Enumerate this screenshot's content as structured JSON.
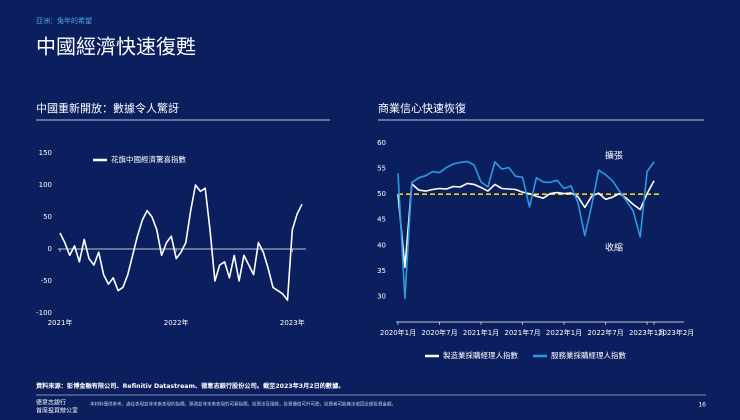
{
  "header": {
    "section": "亞洲：兔年的希望",
    "title": "中國經濟快速復甦"
  },
  "chart_data": [
    {
      "type": "line",
      "title": "中國重新開放：數據令人驚訝",
      "categories": [
        "2021年",
        null,
        null,
        null,
        null,
        null,
        null,
        null,
        null,
        null,
        null,
        null,
        null,
        null,
        null,
        null,
        null,
        null,
        null,
        null,
        null,
        null,
        null,
        null,
        "2022年",
        null,
        null,
        null,
        null,
        null,
        null,
        null,
        null,
        null,
        null,
        null,
        null,
        null,
        null,
        null,
        null,
        null,
        null,
        null,
        null,
        null,
        null,
        null,
        "2023年",
        null,
        null
      ],
      "series": [
        {
          "name": "花旗中國經濟驚喜指數",
          "color": "#ffffff",
          "values": [
            25,
            10,
            -10,
            5,
            -20,
            15,
            -15,
            -25,
            -5,
            -40,
            -55,
            -45,
            -65,
            -60,
            -40,
            -10,
            20,
            45,
            60,
            50,
            30,
            -10,
            10,
            20,
            -15,
            -5,
            10,
            60,
            100,
            90,
            95,
            30,
            -50,
            -25,
            -20,
            -45,
            -10,
            -50,
            -10,
            -25,
            -40,
            10,
            -5,
            -30,
            -60,
            -65,
            -70,
            -80,
            30,
            55,
            70
          ]
        }
      ],
      "ylim": [
        -100,
        150
      ],
      "yticks": [
        -100,
        -50,
        0,
        50,
        100,
        150
      ],
      "legend": "upper-left"
    },
    {
      "type": "line",
      "title": "商業信心快速恢復",
      "categories": [
        "2020年1月",
        null,
        null,
        null,
        null,
        null,
        "2020年7月",
        null,
        null,
        null,
        null,
        null,
        "2021年1月",
        null,
        null,
        null,
        null,
        null,
        "2021年7月",
        null,
        null,
        null,
        null,
        null,
        "2022年1月",
        null,
        null,
        null,
        null,
        null,
        "2022年7月",
        null,
        null,
        null,
        null,
        null,
        "2023年1月",
        "2023年2月"
      ],
      "series": [
        {
          "name": "製造業採購經理人指數",
          "color": "#ffffff",
          "values": [
            50.0,
            35.7,
            52.0,
            50.8,
            50.6,
            50.9,
            51.1,
            51.0,
            51.5,
            51.4,
            52.1,
            51.9,
            51.3,
            50.6,
            51.9,
            51.1,
            51.0,
            50.9,
            50.4,
            50.1,
            49.6,
            49.2,
            50.1,
            50.3,
            50.1,
            50.2,
            49.5,
            47.4,
            49.6,
            50.2,
            49.0,
            49.4,
            50.1,
            49.2,
            48.0,
            47.0,
            50.1,
            52.6
          ]
        },
        {
          "name": "服務業採購經理人指數",
          "color": "#2b9be0",
          "values": [
            54.1,
            29.6,
            52.3,
            53.2,
            53.6,
            54.4,
            54.2,
            55.2,
            55.9,
            56.2,
            56.4,
            55.7,
            52.4,
            51.4,
            56.3,
            54.9,
            55.2,
            53.5,
            53.3,
            47.5,
            53.2,
            52.4,
            52.3,
            52.7,
            51.1,
            51.6,
            48.4,
            41.9,
            47.8,
            54.7,
            53.8,
            52.6,
            50.6,
            48.7,
            46.7,
            41.6,
            54.4,
            56.3
          ]
        }
      ],
      "ylim": [
        25,
        60
      ],
      "yticks": [
        30,
        35,
        40,
        45,
        50,
        55,
        60
      ],
      "reference_line": {
        "value": 50,
        "color": "#f2d40f"
      },
      "annotations": [
        "擴張",
        "收縮"
      ],
      "legend": "bottom"
    }
  ],
  "footer": {
    "source": "資料來源：彭博金融有限公司、Refinitiv Datastream、德意志銀行股份公司。截至2023年3月2日的數據。",
    "company": "德意志銀行",
    "office": "首席投資辦公室",
    "disclaimer": "本材料僅供參考。過往表現並非未來表現的指標。預測並非未來表現的可靠指標。投資涉及風險，投資價值可升可跌，投資者可能無法收回全部投資金額。",
    "page": "16"
  }
}
